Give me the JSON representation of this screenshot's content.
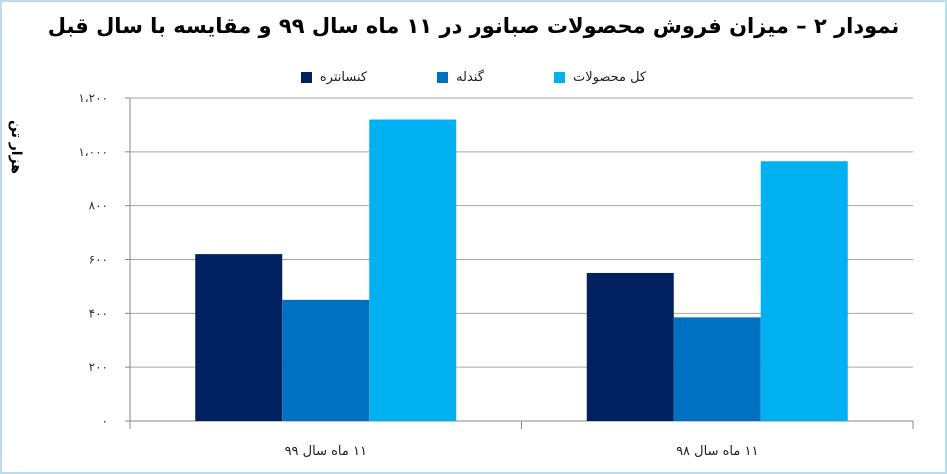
{
  "chart_data": {
    "type": "bar",
    "title": "نمودار ۲ – میزان فروش محصولات صبانور در ۱۱ ماه سال ۹۹ و مقایسه با سال قبل",
    "ylabel": "هزار تن",
    "xlabel": "",
    "categories": [
      "۱۱ ماه سال ۹۹",
      "۱۱ ماه سال ۹۸"
    ],
    "series": [
      {
        "name": "کنسانتره",
        "color": "#002060",
        "values": [
          620,
          550
        ]
      },
      {
        "name": "گندله",
        "color": "#0070c0",
        "values": [
          450,
          385
        ]
      },
      {
        "name": "کل محصولات",
        "color": "#00b0f0",
        "values": [
          1120,
          965
        ]
      }
    ],
    "ylim": [
      0,
      1200
    ],
    "yticks": [
      0,
      200,
      400,
      600,
      800,
      1000,
      1200
    ],
    "ytick_labels": [
      "۰",
      "۲۰۰",
      "۴۰۰",
      "۶۰۰",
      "۸۰۰",
      "۱،۰۰۰",
      "۱،۲۰۰"
    ],
    "grid": true,
    "legend_position": "top"
  }
}
